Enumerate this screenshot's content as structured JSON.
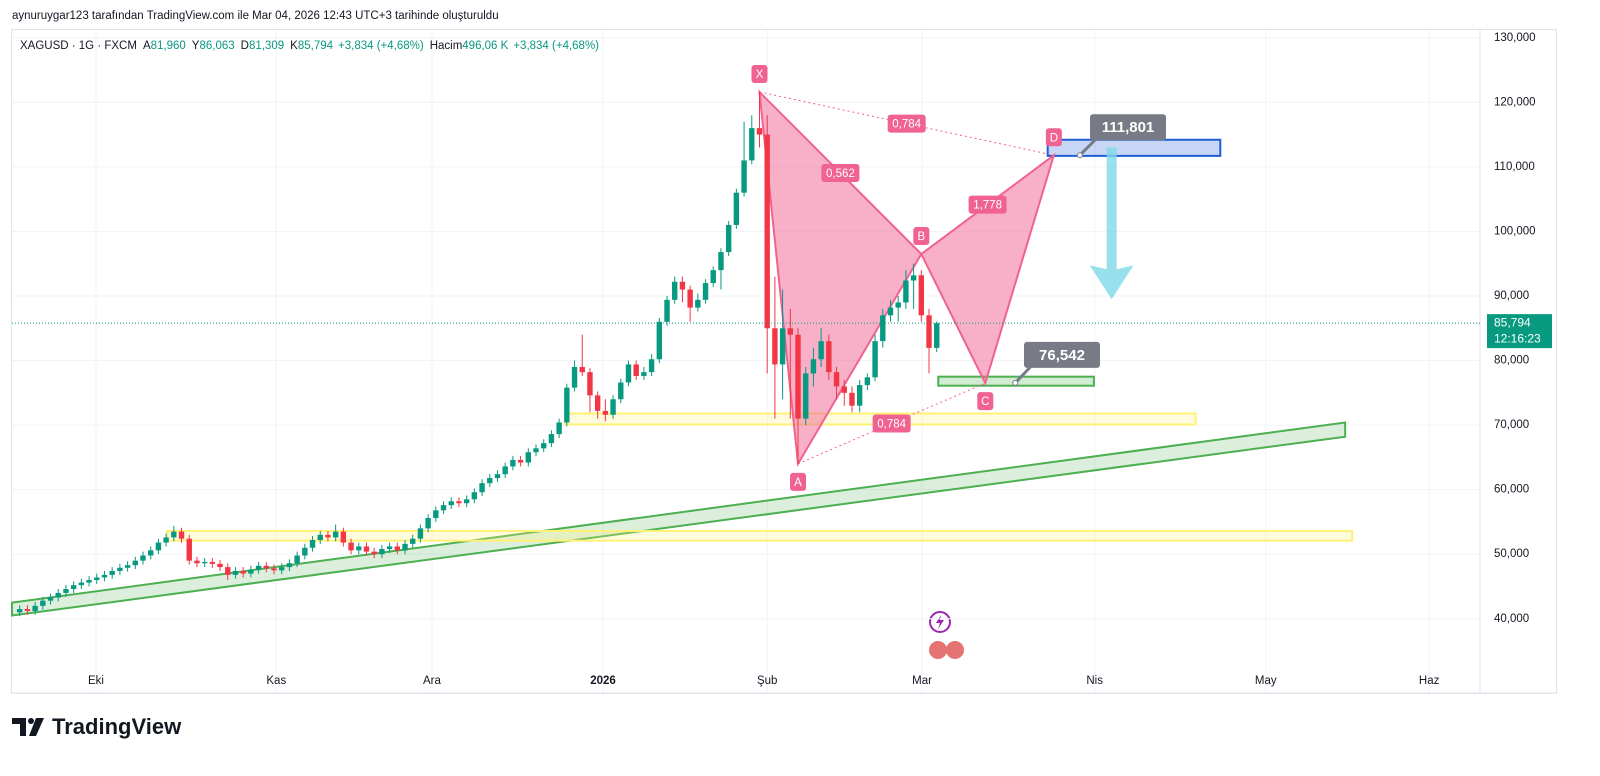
{
  "chart_data": {
    "type": "candlestick",
    "header": "aynuruygar123 tarafından TradingView.com ile Mar 04, 2026 12:43 UTC+3 tarihinde oluşturuldu",
    "legend": {
      "symbol": "XAGUSD · 1G · FXCM",
      "items": [
        {
          "key": "A",
          "value": "81,960"
        },
        {
          "key": "Y",
          "value": "86,063"
        },
        {
          "key": "D",
          "value": "81,309"
        },
        {
          "key": "K",
          "value": "85,794"
        }
      ],
      "change": "+3,834 (+4,68%)",
      "volume_label": "Hacim",
      "volume": "496,06 K",
      "volume_change": "+3,834 (+4,68%)"
    },
    "up_color": "#089981",
    "down_color": "#f23645",
    "candles": {
      "open": [
        41.0,
        41.5,
        41.2,
        42.0,
        42.8,
        43.3,
        44.0,
        44.6,
        45.2,
        45.6,
        46.0,
        46.4,
        46.8,
        47.4,
        47.9,
        48.3,
        49.0,
        49.8,
        50.6,
        51.8,
        52.6,
        53.5,
        52.4,
        49.0,
        48.6,
        48.8,
        48.5,
        48.0,
        46.8,
        47.4,
        47.0,
        47.6,
        48.2,
        47.8,
        47.5,
        48.0,
        48.6,
        49.8,
        51.0,
        52.2,
        53.0,
        52.6,
        53.5,
        51.8,
        50.6,
        51.2,
        50.4,
        50.0,
        50.8,
        51.2,
        50.6,
        51.6,
        52.4,
        54.0,
        55.6,
        56.8,
        57.6,
        58.2,
        57.9,
        58.5,
        59.6,
        61.0,
        61.8,
        62.4,
        63.6,
        64.6,
        64.2,
        65.8,
        66.4,
        67.2,
        68.6,
        70.4,
        75.8,
        79.0,
        78.2,
        74.6,
        72.2,
        71.6,
        74.0,
        76.6,
        79.4,
        77.6,
        78.2,
        80.2,
        86.0,
        89.4,
        92.2,
        91.0,
        88.2,
        89.4,
        92.0,
        94.0,
        96.8,
        101.0,
        106.0,
        111.0,
        116.0,
        115.0,
        85.0,
        79.4,
        85.0,
        84.0,
        71.0,
        78.0,
        80.2,
        83.0,
        78.2,
        76.0,
        75.0,
        73.0,
        76.2,
        77.4,
        83.0,
        87.0,
        88.2,
        89.0,
        92.4,
        93.2,
        87.0,
        81.96
      ],
      "high": [
        42.1,
        42.1,
        42.6,
        43.4,
        43.9,
        44.6,
        45.2,
        45.8,
        46.2,
        46.6,
        47.0,
        47.4,
        48.0,
        48.5,
        48.9,
        49.6,
        50.4,
        51.2,
        52.4,
        53.2,
        54.4,
        54.1,
        53.0,
        49.6,
        49.4,
        49.4,
        49.1,
        48.6,
        48.0,
        48.0,
        48.2,
        48.8,
        48.8,
        48.4,
        48.6,
        49.2,
        50.4,
        51.6,
        52.8,
        53.6,
        53.6,
        54.6,
        54.1,
        52.4,
        51.8,
        51.8,
        51.0,
        51.4,
        51.8,
        51.8,
        52.2,
        53.0,
        54.6,
        56.2,
        57.4,
        58.2,
        58.8,
        58.8,
        59.1,
        60.2,
        61.6,
        62.4,
        63.0,
        64.2,
        65.2,
        65.2,
        66.4,
        67.0,
        67.8,
        69.2,
        71.0,
        76.4,
        80.0,
        84.0,
        78.8,
        75.2,
        74.0,
        74.6,
        77.2,
        80.0,
        80.0,
        79.0,
        81.0,
        86.6,
        90.0,
        93.0,
        93.0,
        91.6,
        90.4,
        92.6,
        94.6,
        97.4,
        101.6,
        106.6,
        117.0,
        118.0,
        121.6,
        118.0,
        93.0,
        91.0,
        88.0,
        85.0,
        79.0,
        82.0,
        85.0,
        84.0,
        79.0,
        77.0,
        76.0,
        77.0,
        78.0,
        84.0,
        88.0,
        89.4,
        90.0,
        94.0,
        95.0,
        94.0,
        88.0,
        86.063
      ],
      "low": [
        40.4,
        40.6,
        40.6,
        41.4,
        42.2,
        42.7,
        43.4,
        44.0,
        44.6,
        45.0,
        45.4,
        45.8,
        46.2,
        46.8,
        47.3,
        47.7,
        48.4,
        49.2,
        50.0,
        51.2,
        52.0,
        51.8,
        48.4,
        48.0,
        48.0,
        47.9,
        47.4,
        46.0,
        46.2,
        46.4,
        46.4,
        47.0,
        47.2,
        46.9,
        46.9,
        47.4,
        48.0,
        49.2,
        50.4,
        51.6,
        52.0,
        52.0,
        51.2,
        50.0,
        50.0,
        49.8,
        49.4,
        49.4,
        50.2,
        50.0,
        50.0,
        51.0,
        51.8,
        53.4,
        55.0,
        56.2,
        57.0,
        57.3,
        57.3,
        57.9,
        59.0,
        60.4,
        61.2,
        61.8,
        63.0,
        63.6,
        63.6,
        65.2,
        65.8,
        66.6,
        68.0,
        69.8,
        75.2,
        77.6,
        72.0,
        71.0,
        70.6,
        71.0,
        73.4,
        76.0,
        77.0,
        77.0,
        77.6,
        79.6,
        85.4,
        88.8,
        89.0,
        86.0,
        87.6,
        88.8,
        91.4,
        91.0,
        96.2,
        100.4,
        105.4,
        110.4,
        113.0,
        78.0,
        71.0,
        74.0,
        71.0,
        64.0,
        70.0,
        76.0,
        79.0,
        77.0,
        74.0,
        73.0,
        72.0,
        72.0,
        75.4,
        76.8,
        82.0,
        86.0,
        86.0,
        88.0,
        88.0,
        86.0,
        78.0,
        81.309
      ],
      "close": [
        41.5,
        41.2,
        42.0,
        42.8,
        43.3,
        44.0,
        44.6,
        45.2,
        45.6,
        46.0,
        46.4,
        46.8,
        47.4,
        47.9,
        48.3,
        49.0,
        49.8,
        50.6,
        51.8,
        52.6,
        53.5,
        52.4,
        49.0,
        48.6,
        48.8,
        48.5,
        48.0,
        46.8,
        47.4,
        47.0,
        47.6,
        48.2,
        47.8,
        47.5,
        48.0,
        48.6,
        49.8,
        51.0,
        52.2,
        53.0,
        52.6,
        53.5,
        51.8,
        50.6,
        51.2,
        50.4,
        50.0,
        50.8,
        51.2,
        50.6,
        51.6,
        52.4,
        54.0,
        55.6,
        56.8,
        57.6,
        58.2,
        57.9,
        58.5,
        59.6,
        61.0,
        61.8,
        62.4,
        63.6,
        64.6,
        64.2,
        65.8,
        66.4,
        67.2,
        68.6,
        70.4,
        75.8,
        79.0,
        78.2,
        74.6,
        72.2,
        71.6,
        74.0,
        76.6,
        79.4,
        77.6,
        78.2,
        80.2,
        86.0,
        89.4,
        92.2,
        91.0,
        88.2,
        89.4,
        92.0,
        94.0,
        96.8,
        101.0,
        106.0,
        111.0,
        116.0,
        115.0,
        85.0,
        79.4,
        85.0,
        84.0,
        71.0,
        78.0,
        80.2,
        83.0,
        78.2,
        76.0,
        75.0,
        73.0,
        76.2,
        77.4,
        83.0,
        87.0,
        88.2,
        89.0,
        92.4,
        93.2,
        87.0,
        81.96,
        85.794
      ]
    },
    "xlim": [
      -1,
      189.5
    ],
    "xticks": [
      {
        "value": 9.9,
        "label": "Eki"
      },
      {
        "value": 33.3,
        "label": "Kas"
      },
      {
        "value": 53.5,
        "label": "Ara"
      },
      {
        "value": 75.7,
        "label": "2026"
      },
      {
        "value": 97.0,
        "label": "Şub"
      },
      {
        "value": 117.1,
        "label": "Mar"
      },
      {
        "value": 139.5,
        "label": "Nis"
      },
      {
        "value": 161.7,
        "label": "May"
      },
      {
        "value": 182.9,
        "label": "Haz"
      }
    ],
    "ylim": [
      28.5,
      131.2
    ],
    "yticks": [
      {
        "value": 40,
        "label": "40,000"
      },
      {
        "value": 50,
        "label": "50,000"
      },
      {
        "value": 60,
        "label": "60,000"
      },
      {
        "value": 70,
        "label": "70,000"
      },
      {
        "value": 80,
        "label": "80,000"
      },
      {
        "value": 90,
        "label": "90,000"
      },
      {
        "value": 100,
        "label": "100,000"
      },
      {
        "value": 110,
        "label": "110,000"
      },
      {
        "value": 120,
        "label": "120,000"
      },
      {
        "value": 130,
        "label": "130,000"
      }
    ],
    "grid": true,
    "last_price": {
      "value": 85.794,
      "label": "85,794"
    },
    "countdown": "12:16:23",
    "channel": {
      "x": [
        -1,
        172
      ],
      "lower": [
        40.5,
        68.2
      ],
      "upper": [
        42.5,
        70.4
      ],
      "color": "#4caf50"
    },
    "zones": [
      {
        "x": [
          19.1,
          172.9
        ],
        "y": [
          52.1,
          53.6
        ],
        "color": "#fff176"
      },
      {
        "x": [
          70.8,
          152.6
        ],
        "y": [
          70.1,
          71.8
        ],
        "color": "#fff176"
      },
      {
        "x": [
          119.2,
          139.4
        ],
        "y": [
          76.1,
          77.5
        ],
        "color": "#4caf50"
      },
      {
        "x": [
          133.4,
          155.8
        ],
        "y": [
          111.7,
          114.2
        ],
        "color": "#1e5fd8"
      }
    ],
    "pattern": {
      "color": "#f06292",
      "points": [
        {
          "label": "X",
          "x": 96,
          "y": 121.6
        },
        {
          "label": "A",
          "x": 101,
          "y": 64
        },
        {
          "label": "B",
          "x": 117,
          "y": 96.5
        },
        {
          "label": "C",
          "x": 125.3,
          "y": 76.5
        },
        {
          "label": "D",
          "x": 134.2,
          "y": 111.8
        }
      ],
      "ratio_labels": [
        "0,784",
        "0,562",
        "1,778",
        "0,784"
      ]
    },
    "targets": [
      {
        "value": 111.801,
        "label": "111,801"
      },
      {
        "value": 76.542,
        "label": "76,542"
      }
    ],
    "arrow": {
      "x": 141.7,
      "y": [
        113,
        89.5
      ],
      "color": "#7fd8e8"
    },
    "brand": "TradingView"
  }
}
